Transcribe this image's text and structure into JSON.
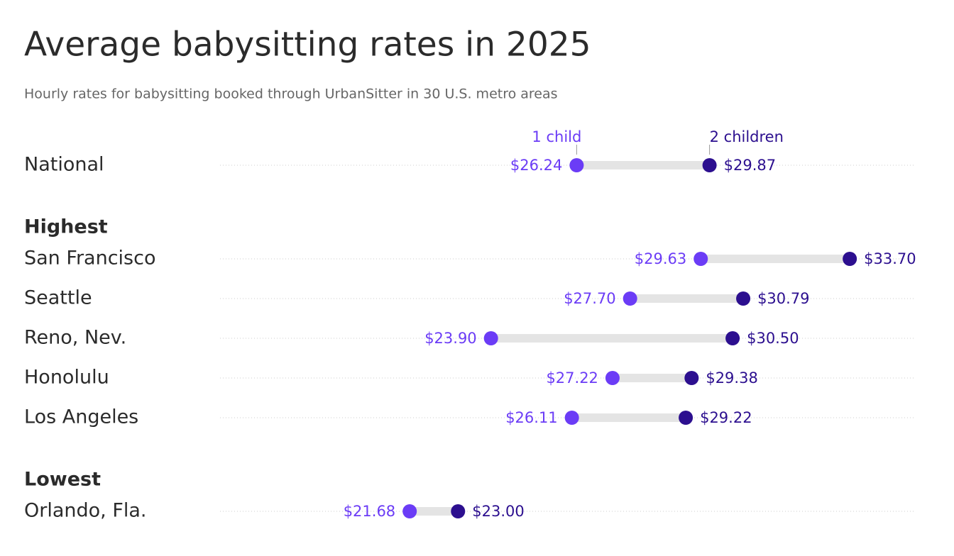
{
  "chart_data": {
    "type": "dumbbell",
    "title": "Average babysitting rates in 2025",
    "subtitle": "Hourly rates for babysitting booked through UrbanSitter in 30 U.S. metro areas",
    "categories": [
      "National",
      "San Francisco",
      "Seattle",
      "Reno, Nev.",
      "Honolulu",
      "Los Angeles",
      "Orlando, Fla."
    ],
    "group_labels": [
      "Highest",
      "Lowest"
    ],
    "series": [
      {
        "name": "1 child",
        "color": "#6b3cf6",
        "values": [
          26.24,
          29.63,
          27.7,
          23.9,
          27.22,
          26.11,
          21.68
        ],
        "value_labels": [
          "$26.24",
          "$29.63",
          "$27.70",
          "$23.90",
          "$27.22",
          "$26.11",
          "$21.68"
        ]
      },
      {
        "name": "2 children",
        "color": "#2c0f8f",
        "values": [
          29.87,
          33.7,
          30.79,
          30.5,
          29.38,
          29.22,
          23.0
        ],
        "value_labels": [
          "$29.87",
          "$33.70",
          "$30.79",
          "$30.50",
          "$29.38",
          "$29.22",
          "$23.00"
        ]
      }
    ],
    "xlim": [
      16.5,
      35.5
    ]
  }
}
